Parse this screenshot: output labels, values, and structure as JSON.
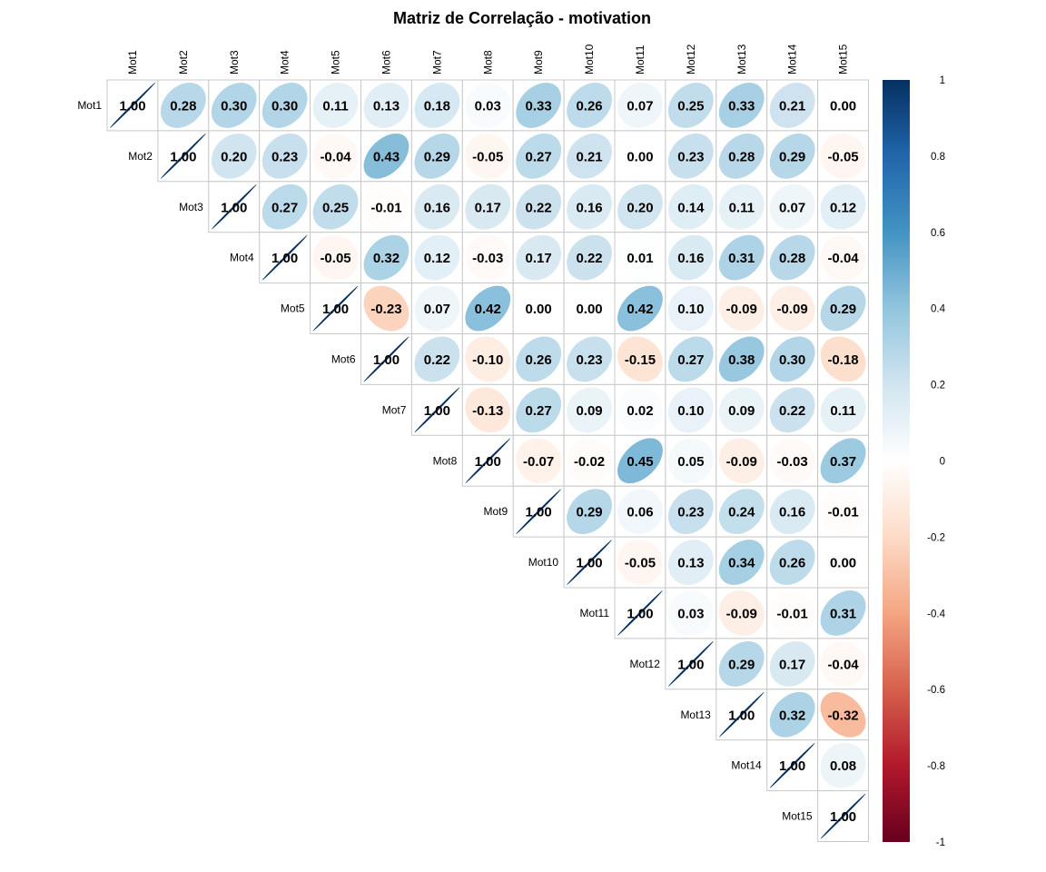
{
  "chart_data": {
    "type": "heatmap",
    "title": "Matriz de Correlação - motivation",
    "variables": [
      "Mot1",
      "Mot2",
      "Mot3",
      "Mot4",
      "Mot5",
      "Mot6",
      "Mot7",
      "Mot8",
      "Mot9",
      "Mot10",
      "Mot11",
      "Mot12",
      "Mot13",
      "Mot14",
      "Mot15"
    ],
    "shape": "upper-triangle ellipses with coefficient labels",
    "matrix": [
      [
        1.0,
        0.28,
        0.3,
        0.3,
        0.11,
        0.13,
        0.18,
        0.03,
        0.33,
        0.26,
        0.07,
        0.25,
        0.33,
        0.21,
        0.0
      ],
      [
        null,
        1.0,
        0.2,
        0.23,
        -0.04,
        0.43,
        0.29,
        -0.05,
        0.27,
        0.21,
        0.0,
        0.23,
        0.28,
        0.29,
        -0.05
      ],
      [
        null,
        null,
        1.0,
        0.27,
        0.25,
        -0.01,
        0.16,
        0.17,
        0.22,
        0.16,
        0.2,
        0.14,
        0.11,
        0.07,
        0.12
      ],
      [
        null,
        null,
        null,
        1.0,
        -0.05,
        0.32,
        0.12,
        -0.03,
        0.17,
        0.22,
        0.01,
        0.16,
        0.31,
        0.28,
        -0.04
      ],
      [
        null,
        null,
        null,
        null,
        1.0,
        -0.23,
        0.07,
        0.42,
        0.0,
        0.0,
        0.42,
        0.1,
        -0.09,
        -0.09,
        0.29
      ],
      [
        null,
        null,
        null,
        null,
        null,
        1.0,
        0.22,
        -0.1,
        0.26,
        0.23,
        -0.15,
        0.27,
        0.38,
        0.3,
        -0.18
      ],
      [
        null,
        null,
        null,
        null,
        null,
        null,
        1.0,
        -0.13,
        0.27,
        0.09,
        0.02,
        0.1,
        0.09,
        0.22,
        0.11
      ],
      [
        null,
        null,
        null,
        null,
        null,
        null,
        null,
        1.0,
        -0.07,
        -0.02,
        0.45,
        0.05,
        -0.09,
        -0.03,
        0.37
      ],
      [
        null,
        null,
        null,
        null,
        null,
        null,
        null,
        null,
        1.0,
        0.29,
        0.06,
        0.23,
        0.24,
        0.16,
        -0.01
      ],
      [
        null,
        null,
        null,
        null,
        null,
        null,
        null,
        null,
        null,
        1.0,
        -0.05,
        0.13,
        0.34,
        0.26,
        0.0
      ],
      [
        null,
        null,
        null,
        null,
        null,
        null,
        null,
        null,
        null,
        null,
        1.0,
        0.03,
        -0.09,
        -0.01,
        0.31
      ],
      [
        null,
        null,
        null,
        null,
        null,
        null,
        null,
        null,
        null,
        null,
        null,
        1.0,
        0.29,
        0.17,
        -0.04
      ],
      [
        null,
        null,
        null,
        null,
        null,
        null,
        null,
        null,
        null,
        null,
        null,
        null,
        1.0,
        0.32,
        -0.32
      ],
      [
        null,
        null,
        null,
        null,
        null,
        null,
        null,
        null,
        null,
        null,
        null,
        null,
        null,
        1.0,
        0.08
      ],
      [
        null,
        null,
        null,
        null,
        null,
        null,
        null,
        null,
        null,
        null,
        null,
        null,
        null,
        null,
        1.0
      ]
    ],
    "colorbar": {
      "range": [
        -1,
        1
      ],
      "ticks": [
        1,
        0.8,
        0.6,
        0.4,
        0.2,
        0,
        -0.2,
        -0.4,
        -0.6,
        -0.8,
        -1
      ],
      "tick_labels": [
        "1",
        "0.8",
        "0.6",
        "0.4",
        "0.2",
        "0",
        "-0.2",
        "-0.4",
        "-0.6",
        "-0.8",
        "-1"
      ],
      "colors": [
        "#67001F",
        "#B2182B",
        "#D6604D",
        "#F4A582",
        "#FDDBC7",
        "#FFFFFF",
        "#D1E5F0",
        "#92C5DE",
        "#4393C3",
        "#2166AC",
        "#053061"
      ]
    },
    "grid": true,
    "legend_placement": "right"
  }
}
